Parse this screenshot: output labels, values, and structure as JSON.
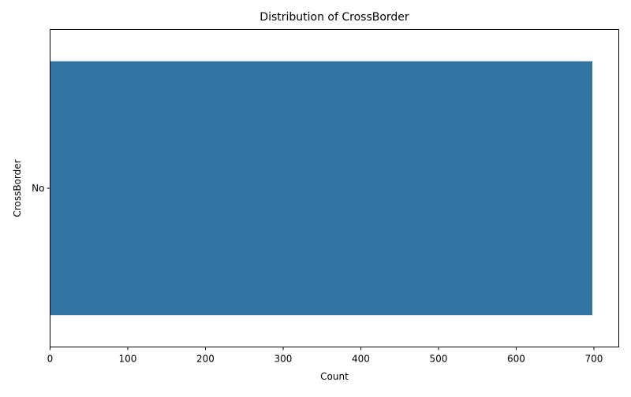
{
  "chart_data": {
    "type": "bar",
    "orientation": "horizontal",
    "title": "Distribution of CrossBorder",
    "xlabel": "Count",
    "ylabel": "CrossBorder",
    "categories": [
      "No"
    ],
    "values": [
      698
    ],
    "xlim": [
      0,
      732
    ],
    "xticks": [
      0,
      100,
      200,
      300,
      400,
      500,
      600,
      700
    ],
    "grid": false,
    "legend": "none",
    "bar_color": "#3274a1"
  }
}
